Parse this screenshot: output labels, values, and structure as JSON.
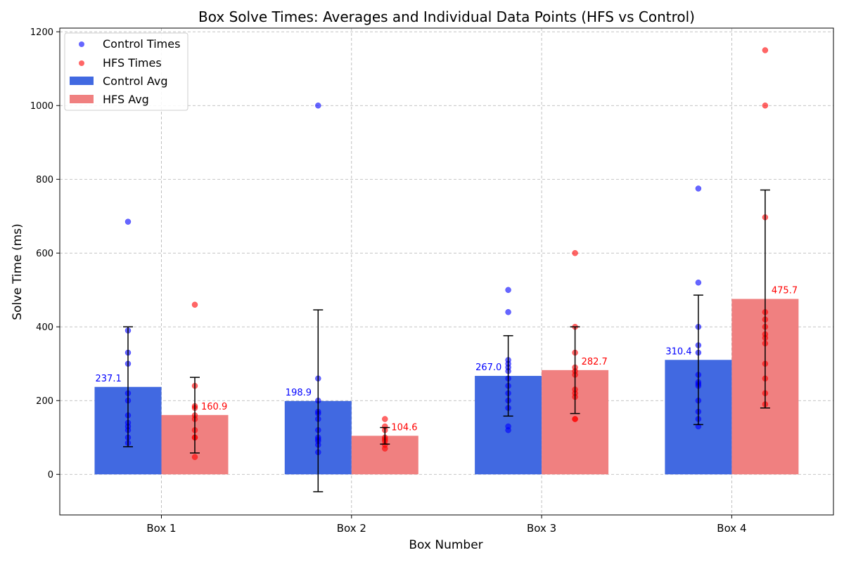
{
  "chart_data": {
    "type": "bar",
    "title": "Box Solve Times: Averages and Individual Data Points (HFS vs Control)",
    "xlabel": "Box Number",
    "ylabel": "Solve Time (ms)",
    "ylim": [
      -110,
      1210
    ],
    "yticks": [
      0,
      200,
      400,
      600,
      800,
      1000,
      1200
    ],
    "grid": true,
    "legend_position": "top-left",
    "categories": [
      "Box 1",
      "Box 2",
      "Box 3",
      "Box 4"
    ],
    "legend": {
      "control_points": "Control Times",
      "hfs_points": "HFS Times",
      "control_avg": "Control Avg",
      "hfs_avg": "HFS Avg"
    },
    "colors": {
      "control_bar": "#4169e1",
      "hfs_bar": "#f08080",
      "control_point": "#0000ff",
      "hfs_point": "#ff0000",
      "control_label": "#0000ff",
      "hfs_label": "#ff0000",
      "error_bar": "#000000"
    },
    "series": [
      {
        "name": "Control Avg",
        "values": [
          237.1,
          198.9,
          267.0,
          310.4
        ],
        "value_labels": [
          "237.1",
          "198.9",
          "267.0",
          "310.4"
        ],
        "error_low": [
          75,
          -47,
          158,
          135
        ],
        "error_high": [
          400,
          446,
          376,
          486
        ],
        "points": [
          [
            685,
            390,
            330,
            300,
            220,
            200,
            160,
            140,
            130,
            120,
            100,
            85
          ],
          [
            1000,
            260,
            200,
            170,
            165,
            150,
            120,
            100,
            95,
            90,
            80,
            60
          ],
          [
            500,
            440,
            310,
            300,
            290,
            280,
            260,
            240,
            220,
            200,
            180,
            130,
            120
          ],
          [
            775,
            520,
            400,
            350,
            330,
            270,
            250,
            245,
            240,
            200,
            170,
            150,
            130
          ]
        ]
      },
      {
        "name": "HFS Avg",
        "values": [
          160.9,
          104.6,
          282.7,
          475.7
        ],
        "value_labels": [
          "160.9",
          "104.6",
          "282.7",
          "475.7"
        ],
        "error_low": [
          58,
          82,
          165,
          180
        ],
        "error_high": [
          263,
          127,
          400,
          771
        ],
        "points": [
          [
            460,
            240,
            185,
            180,
            160,
            150,
            120,
            100,
            100,
            47
          ],
          [
            150,
            130,
            120,
            100,
            95,
            90,
            80,
            70
          ],
          [
            600,
            400,
            330,
            290,
            280,
            270,
            230,
            220,
            210,
            150,
            150
          ],
          [
            1150,
            1000,
            697,
            440,
            420,
            400,
            380,
            370,
            355,
            300,
            260,
            220,
            190
          ]
        ]
      }
    ]
  }
}
